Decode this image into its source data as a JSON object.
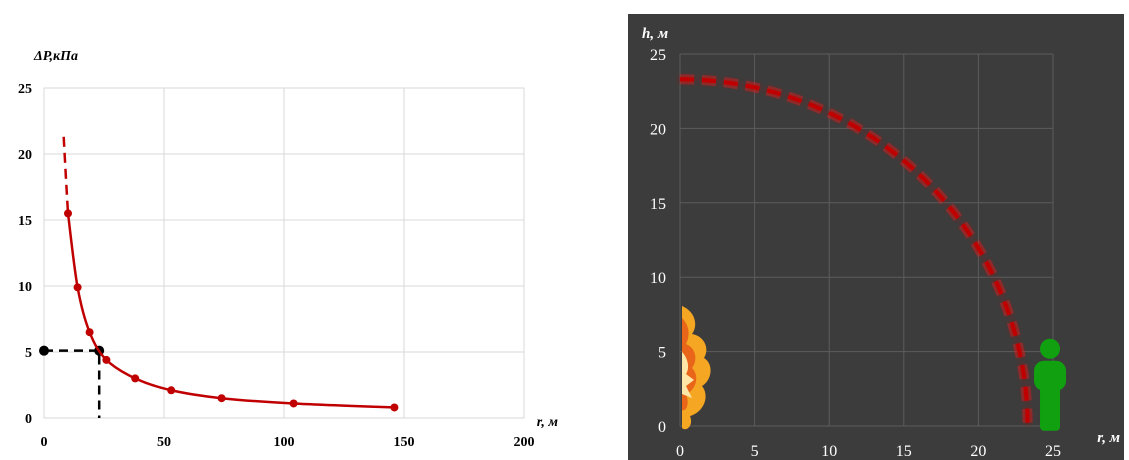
{
  "chart_data": [
    {
      "type": "line",
      "ylabel": "ΔP,кПа",
      "xlabel": "r, м",
      "xlim": [
        0,
        200
      ],
      "ylim": [
        0,
        25
      ],
      "xticks": [
        "0",
        "50",
        "100",
        "150",
        "200"
      ],
      "yticks": [
        "0",
        "5",
        "10",
        "15",
        "20",
        "25"
      ],
      "grid": true,
      "colors": {
        "curve": "#c00000",
        "marker": "#000000"
      },
      "series": [
        {
          "x": [
            10,
            14,
            19,
            26,
            38,
            53,
            74,
            104,
            146
          ],
          "y": [
            15.5,
            9.9,
            6.5,
            4.4,
            3.0,
            2.1,
            1.5,
            1.1,
            0.8
          ],
          "style": "solid-with-markers"
        },
        {
          "x": [
            8.2,
            9.2,
            10
          ],
          "y": [
            21.3,
            18.0,
            15.5
          ],
          "style": "dashed"
        }
      ],
      "annotation": {
        "style": "dashed",
        "x": 23,
        "y": 5.1,
        "points": [
          [
            0,
            5.1
          ],
          [
            23,
            5.1
          ],
          [
            23,
            0
          ]
        ]
      }
    },
    {
      "type": "line",
      "ylabel": "h, м",
      "xlabel": "r, м",
      "xlim": [
        0,
        25
      ],
      "ylim": [
        0,
        25
      ],
      "xticks": [
        "0",
        "5",
        "10",
        "15",
        "20",
        "25"
      ],
      "yticks": [
        "0",
        "5",
        "10",
        "15",
        "20",
        "25"
      ],
      "grid": true,
      "background": "#3c3c3c",
      "colors": {
        "curve": "#c00000",
        "person": "#10a010",
        "fire": "#f5a623"
      },
      "series": [
        {
          "style": "dashed-arc",
          "radius": 23.3,
          "x": [
            0,
            5,
            10,
            15,
            20,
            23.3
          ],
          "y": [
            23.3,
            22.8,
            21.0,
            17.8,
            12.0,
            0
          ]
        }
      ],
      "icons": [
        "explosion-icon",
        "person-icon"
      ],
      "person_position": {
        "r": 24.8,
        "h": 2.5
      }
    }
  ]
}
